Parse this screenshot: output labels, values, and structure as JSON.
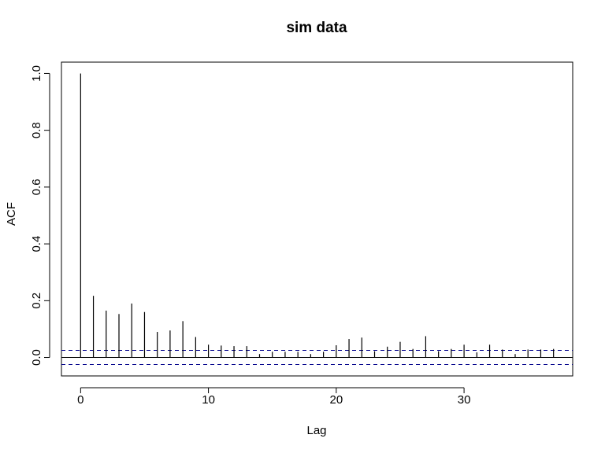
{
  "chart_data": {
    "type": "bar",
    "title": "sim data",
    "xlabel": "Lag",
    "ylabel": "ACF",
    "xlim": [
      -1.5,
      38.5
    ],
    "ylim": [
      -0.065,
      1.04
    ],
    "x_ticks": [
      0,
      10,
      20,
      30
    ],
    "x_tick_labels": [
      "0",
      "10",
      "20",
      "30"
    ],
    "y_ticks": [
      0.0,
      0.2,
      0.4,
      0.6,
      0.8,
      1.0
    ],
    "y_tick_labels": [
      "0.0",
      "0.2",
      "0.4",
      "0.6",
      "0.8",
      "1.0"
    ],
    "grid": false,
    "zero_line": 0.0,
    "confidence_bound": 0.025,
    "confidence_color": "#00008B",
    "x": [
      0,
      1,
      2,
      3,
      4,
      5,
      6,
      7,
      8,
      9,
      10,
      11,
      12,
      13,
      14,
      15,
      16,
      17,
      18,
      19,
      20,
      21,
      22,
      23,
      24,
      25,
      26,
      27,
      28,
      29,
      30,
      31,
      32,
      33,
      34,
      35,
      36,
      37
    ],
    "values": [
      1.0,
      0.217,
      0.165,
      0.153,
      0.19,
      0.16,
      0.09,
      0.095,
      0.128,
      0.072,
      0.045,
      0.042,
      0.04,
      0.04,
      0.012,
      0.02,
      0.02,
      0.02,
      0.012,
      0.02,
      0.043,
      0.065,
      0.07,
      0.022,
      0.038,
      0.055,
      0.03,
      0.075,
      0.022,
      0.03,
      0.045,
      0.018,
      0.045,
      0.028,
      0.012,
      0.028,
      0.028,
      0.03
    ]
  }
}
